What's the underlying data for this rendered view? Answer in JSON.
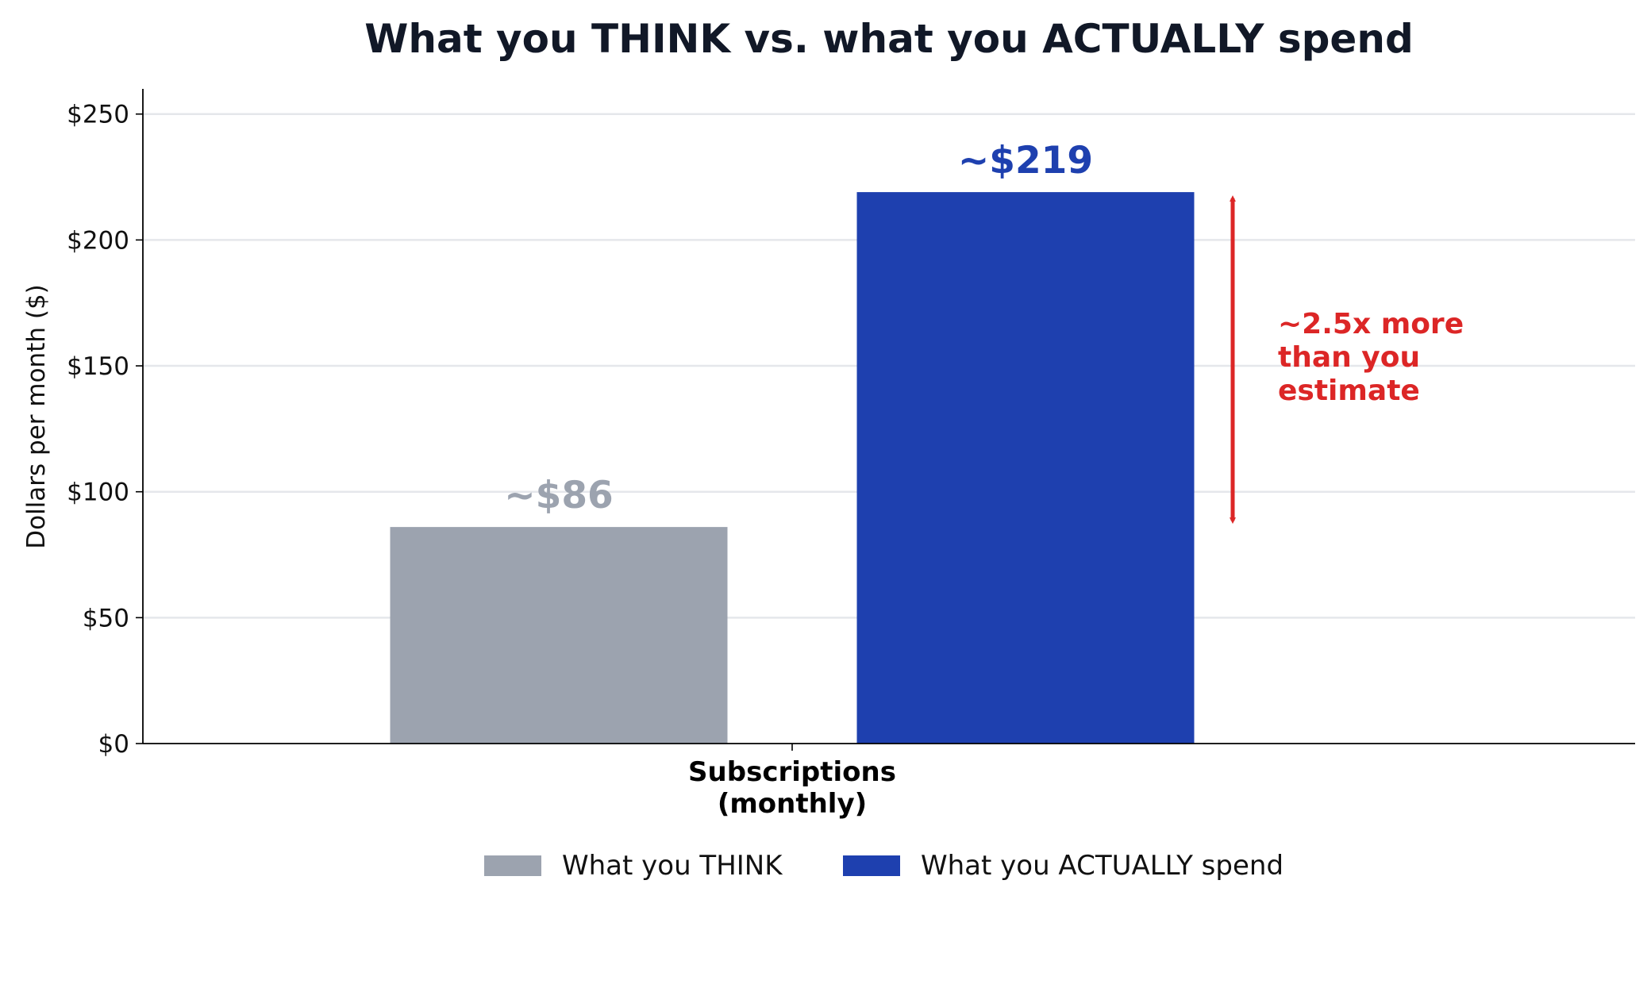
{
  "chart_data": {
    "type": "bar",
    "title": "What you THINK vs. what you ACTUALLY spend",
    "xlabel": "",
    "ylabel": "Dollars per month ($)",
    "categories": [
      "Subscriptions\n(monthly)"
    ],
    "category_lines": [
      [
        "Subscriptions",
        "(monthly)"
      ]
    ],
    "series": [
      {
        "name": "What you THINK",
        "values": [
          86
        ],
        "color": "#9ca3af",
        "data_label": "~$86"
      },
      {
        "name": "What you ACTUALLY spend",
        "values": [
          219
        ],
        "color": "#1e40af",
        "data_label": "~$219"
      }
    ],
    "ylim": [
      0,
      260
    ],
    "yticks": [
      0,
      50,
      100,
      150,
      200,
      250
    ],
    "ytick_labels": [
      "$0",
      "$50",
      "$100",
      "$150",
      "$200",
      "$250"
    ],
    "grid": "y",
    "legend": "bottom-center",
    "annotation": {
      "lines": [
        "~2.5x more",
        "than you",
        "estimate"
      ],
      "from": 86,
      "to": 219,
      "color": "#dc2626"
    }
  }
}
